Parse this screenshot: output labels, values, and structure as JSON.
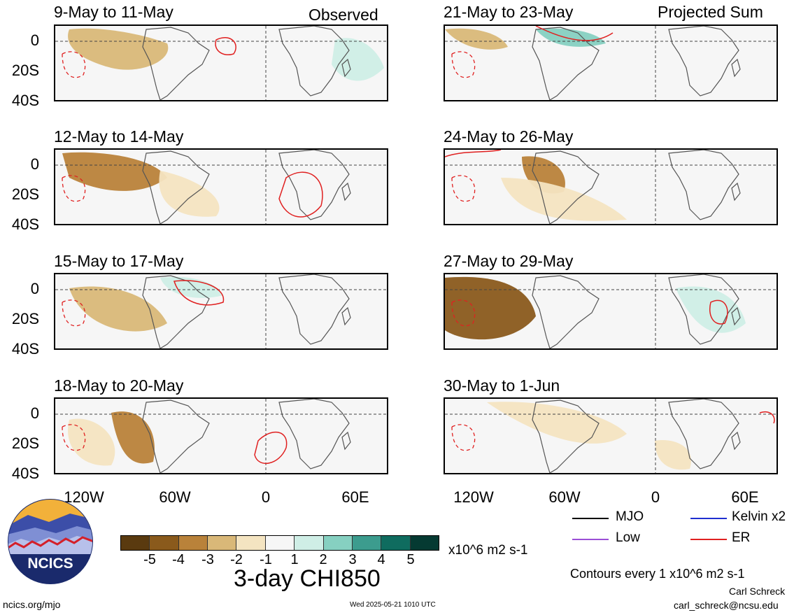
{
  "header": {
    "observed_label": "Observed",
    "projected_label": "Projected Sum"
  },
  "panels": [
    {
      "title": "9-May to 11-May"
    },
    {
      "title": "21-May to 23-May"
    },
    {
      "title": "12-May to 14-May"
    },
    {
      "title": "24-May to 26-May"
    },
    {
      "title": "15-May to 17-May"
    },
    {
      "title": "27-May to 29-May"
    },
    {
      "title": "18-May to 20-May"
    },
    {
      "title": "30-May to 1-Jun"
    }
  ],
  "axes": {
    "lat_labels": [
      "0",
      "20S",
      "40S"
    ],
    "lon_labels": [
      "120W",
      "60W",
      "0",
      "60E"
    ]
  },
  "colorbar": {
    "title": "3-day CHI850",
    "units": "x10^6 m2 s-1",
    "labels": [
      "-5",
      "-4",
      "-3",
      "-2",
      "-1",
      "1",
      "2",
      "3",
      "4",
      "5"
    ],
    "colors": [
      "#5a3a0f",
      "#8a5a1c",
      "#b9823a",
      "#d9b878",
      "#f4e4c1",
      "#f6f6f6",
      "#cfeee6",
      "#86d0c1",
      "#3c9c8e",
      "#0f6c5f",
      "#053a32"
    ]
  },
  "legend": {
    "items": [
      {
        "label": "MJO",
        "color": "#000000"
      },
      {
        "label": "Kelvin x2",
        "color": "#1f2fd0"
      },
      {
        "label": "Low",
        "color": "#9b4fd6"
      },
      {
        "label": "ER",
        "color": "#e02020"
      }
    ],
    "contours_note": "Contours every 1 x10^6 m2 s-1"
  },
  "footer": {
    "logo_text": "NCICS",
    "url": "ncics.org/mjo",
    "timestamp": "Wed 2025-05-21 1010 UTC",
    "author": "Carl Schreck",
    "email": "carl_schreck@ncsu.edu"
  }
}
